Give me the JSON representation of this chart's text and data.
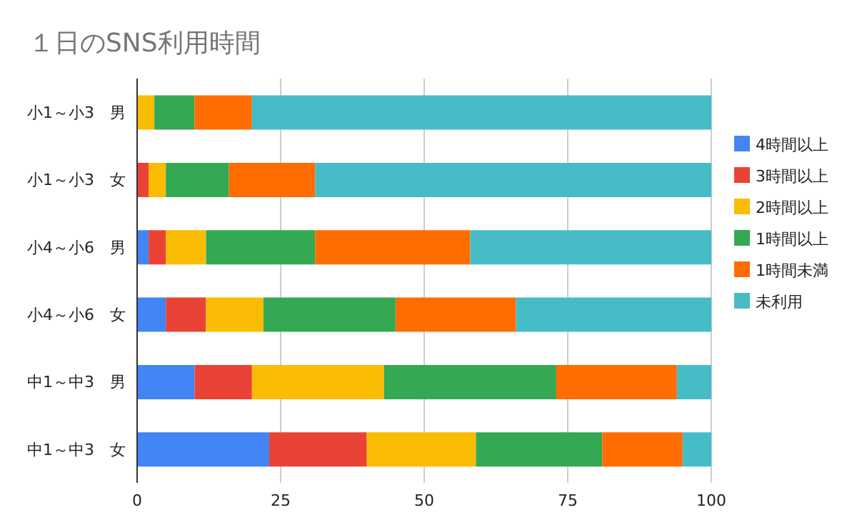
{
  "chart_data": {
    "type": "bar",
    "title": "１日のSNS利用時間",
    "orientation": "horizontal",
    "stacked": true,
    "categories": [
      "小1～小3　男",
      "小1～小3　女",
      "小4～小6　男",
      "小4～小6　女",
      "中1～中3　男",
      "中1～中3　女"
    ],
    "series": [
      {
        "name": "4時間以上",
        "color": "#4285f4",
        "values": [
          0,
          0,
          2,
          5,
          10,
          23
        ]
      },
      {
        "name": "3時間以上",
        "color": "#ea4335",
        "values": [
          0,
          2,
          3,
          7,
          10,
          17
        ]
      },
      {
        "name": "2時間以上",
        "color": "#fbbc04",
        "values": [
          3,
          3,
          7,
          10,
          23,
          19
        ]
      },
      {
        "name": "1時間以上",
        "color": "#34a853",
        "values": [
          7,
          11,
          19,
          23,
          30,
          22
        ]
      },
      {
        "name": "1時間未満",
        "color": "#ff6d01",
        "values": [
          10,
          15,
          27,
          21,
          21,
          14
        ]
      },
      {
        "name": "未利用",
        "color": "#46bdc6",
        "values": [
          80,
          69,
          42,
          34,
          6,
          5
        ]
      }
    ],
    "xlim": [
      0,
      100
    ],
    "xticks": [
      0,
      25,
      50,
      75,
      100
    ],
    "grid": "x",
    "legend": "right"
  }
}
